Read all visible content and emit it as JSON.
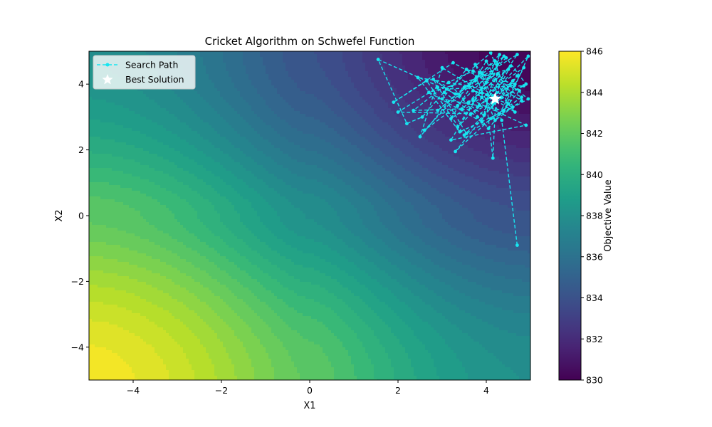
{
  "chart_data": {
    "type": "contour",
    "title": "Cricket Algorithm on Schwefel Function",
    "xlabel": "X1",
    "ylabel": "X2",
    "xlim": [
      -5,
      5
    ],
    "ylim": [
      -5,
      5
    ],
    "xticks": [
      -4,
      -2,
      0,
      2,
      4
    ],
    "yticks": [
      -4,
      -2,
      0,
      2,
      4
    ],
    "tick_labels_x": [
      "−4",
      "−2",
      "0",
      "2",
      "4"
    ],
    "tick_labels_y": [
      "−4",
      "−2",
      "0",
      "2",
      "4"
    ],
    "colormap": "viridis",
    "colorbar": {
      "label": "Objective Value",
      "range": [
        830,
        846
      ],
      "ticks": [
        830,
        832,
        834,
        836,
        838,
        840,
        842,
        844,
        846
      ],
      "tick_labels": [
        "830",
        "832",
        "834",
        "836",
        "838",
        "840",
        "842",
        "844",
        "846"
      ]
    },
    "legend": {
      "placement": "top-left",
      "entries": [
        "Search Path",
        "Best Solution"
      ]
    },
    "search_path": {
      "name": "Search Path",
      "color": "#17e5f0",
      "line_style": "dashed",
      "x": [
        4.7,
        4.35,
        3.9,
        4.8,
        4.1,
        3.3,
        4.6,
        3.8,
        4.2,
        3.5,
        2.9,
        4.4,
        3.7,
        4.9,
        3.2,
        4.0,
        3.6,
        4.5,
        2.7,
        3.9,
        4.3,
        3.4,
        1.55,
        2.2,
        2.55,
        3.1,
        4.85,
        4.15,
        3.75,
        4.65,
        3.0,
        2.5,
        3.3,
        4.25,
        4.95,
        3.55,
        2.8,
        3.95,
        4.55,
        3.45,
        2.35,
        3.15,
        4.05,
        4.75,
        3.85,
        2.6,
        3.35,
        4.45,
        4.9,
        3.65,
        2.0,
        2.9,
        3.7,
        4.2,
        4.8,
        3.25,
        1.9,
        2.65,
        3.5,
        4.35,
        4.7,
        3.8,
        3.05,
        4.1,
        4.6,
        3.4,
        2.45,
        3.6,
        4.3,
        4.85,
        3.9,
        3.2,
        4.0,
        4.5,
        3.7,
        4.15,
        4.65,
        3.55,
        3.0,
        4.4,
        4.95,
        3.85,
        3.35,
        4.25,
        4.15,
        4.0,
        4.7,
        3.75,
        4.2
      ],
      "y": [
        -0.9,
        2.9,
        4.3,
        3.6,
        2.95,
        1.95,
        4.1,
        3.3,
        4.7,
        3.9,
        3.2,
        4.85,
        3.5,
        2.75,
        2.3,
        4.05,
        3.45,
        4.45,
        3.75,
        2.85,
        4.9,
        3.65,
        4.75,
        2.8,
        3.0,
        3.85,
        3.95,
        3.4,
        4.6,
        3.15,
        4.5,
        2.4,
        3.7,
        4.3,
        3.55,
        2.5,
        4.15,
        3.05,
        4.55,
        3.25,
        3.2,
        4.05,
        2.65,
        3.8,
        4.35,
        2.6,
        3.35,
        4.8,
        4.0,
        3.1,
        3.15,
        3.9,
        4.4,
        2.9,
        3.5,
        4.65,
        3.45,
        4.1,
        2.45,
        3.6,
        4.25,
        3.0,
        3.75,
        4.95,
        3.3,
        2.55,
        4.2,
        3.95,
        3.1,
        4.5,
        3.6,
        2.95,
        4.7,
        3.4,
        3.8,
        3.65,
        4.0,
        4.45,
        3.55,
        3.2,
        4.85,
        3.35,
        2.7,
        4.6,
        1.75,
        3.5,
        4.9,
        4.1,
        3.55
      ]
    },
    "best_solution": {
      "name": "Best Solution",
      "color": "#ffffff",
      "marker": "star",
      "x": 4.2,
      "y": 3.55
    }
  }
}
